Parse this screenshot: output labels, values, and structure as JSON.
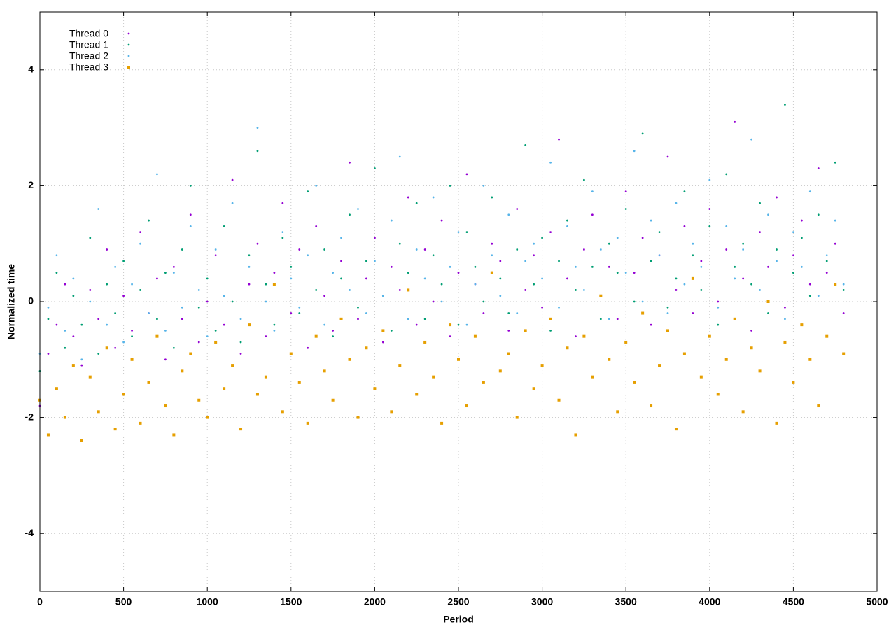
{
  "chart_data": {
    "type": "scatter",
    "xlabel": "Period",
    "ylabel": "Normalized time",
    "xlim": [
      0,
      5000
    ],
    "ylim": [
      -5,
      5
    ],
    "xticks": [
      0,
      500,
      1000,
      1500,
      2000,
      2500,
      3000,
      3500,
      4000,
      4500,
      5000
    ],
    "yticks": [
      -4,
      -2,
      0,
      2,
      4
    ],
    "grid": true,
    "legend": "top-left",
    "x": [
      0,
      50,
      100,
      150,
      200,
      250,
      300,
      350,
      400,
      450,
      500,
      550,
      600,
      650,
      700,
      750,
      800,
      850,
      900,
      950,
      1000,
      1050,
      1100,
      1150,
      1200,
      1250,
      1300,
      1350,
      1400,
      1450,
      1500,
      1550,
      1600,
      1650,
      1700,
      1750,
      1800,
      1850,
      1900,
      1950,
      2000,
      2050,
      2100,
      2150,
      2200,
      2250,
      2300,
      2350,
      2400,
      2450,
      2500,
      2550,
      2600,
      2650,
      2700,
      2750,
      2800,
      2850,
      2900,
      2950,
      3000,
      3050,
      3100,
      3150,
      3200,
      3250,
      3300,
      3350,
      3400,
      3450,
      3500,
      3550,
      3600,
      3650,
      3700,
      3750,
      3800,
      3850,
      3900,
      3950,
      4000,
      4050,
      4100,
      4150,
      4200,
      4250,
      4300,
      4350,
      4400,
      4450,
      4500,
      4550,
      4600,
      4650,
      4700,
      4750,
      4800
    ],
    "series": [
      {
        "name": "Thread 0",
        "color": "#9400d3",
        "marker": "dot",
        "values": [
          -1.8,
          -0.9,
          -0.4,
          0.3,
          -0.6,
          -1.1,
          0.2,
          -0.3,
          0.9,
          -0.8,
          0.1,
          -0.5,
          1.2,
          -0.2,
          0.4,
          -1.0,
          0.6,
          -0.3,
          1.5,
          -0.7,
          0.0,
          0.8,
          -0.4,
          2.1,
          -0.9,
          0.3,
          1.0,
          -0.6,
          0.5,
          1.7,
          -0.2,
          0.9,
          -0.8,
          1.3,
          0.1,
          -0.5,
          0.7,
          2.4,
          -0.3,
          0.4,
          1.1,
          -0.7,
          0.6,
          0.2,
          1.8,
          -0.4,
          0.9,
          0.0,
          1.4,
          -0.6,
          0.5,
          2.2,
          0.3,
          -0.2,
          1.0,
          0.7,
          -0.5,
          1.6,
          0.2,
          0.8,
          -0.1,
          1.2,
          2.8,
          0.4,
          -0.6,
          0.9,
          1.5,
          0.1,
          0.6,
          -0.3,
          1.9,
          0.5,
          1.1,
          -0.4,
          0.8,
          2.5,
          0.2,
          1.3,
          -0.2,
          0.7,
          1.6,
          0.0,
          0.9,
          3.1,
          0.4,
          -0.5,
          1.2,
          0.6,
          1.8,
          -0.1,
          0.8,
          1.4,
          0.3,
          2.3,
          0.5,
          1.0,
          -0.2
        ]
      },
      {
        "name": "Thread 1",
        "color": "#009e73",
        "marker": "dot",
        "values": [
          -1.2,
          -0.3,
          0.5,
          -0.8,
          0.1,
          -0.4,
          1.1,
          -0.9,
          0.3,
          -0.2,
          0.7,
          -0.6,
          0.2,
          1.4,
          -0.3,
          0.5,
          -0.8,
          0.9,
          2.0,
          -0.1,
          0.4,
          -0.5,
          1.3,
          0.0,
          -0.7,
          0.8,
          2.6,
          0.3,
          -0.4,
          1.1,
          0.6,
          -0.2,
          1.9,
          0.2,
          0.9,
          -0.6,
          0.4,
          1.5,
          -0.1,
          0.7,
          2.3,
          0.1,
          -0.5,
          1.0,
          0.5,
          1.7,
          -0.3,
          0.8,
          0.3,
          2.0,
          -0.4,
          1.2,
          0.6,
          0.0,
          1.8,
          0.4,
          -0.2,
          0.9,
          2.7,
          0.3,
          1.1,
          -0.5,
          0.7,
          1.4,
          0.2,
          2.1,
          0.6,
          -0.3,
          1.0,
          0.5,
          1.6,
          0.0,
          2.9,
          0.7,
          1.2,
          -0.1,
          0.4,
          1.9,
          0.8,
          0.2,
          1.3,
          -0.4,
          2.2,
          0.6,
          1.0,
          0.3,
          1.7,
          -0.2,
          0.9,
          3.4,
          0.5,
          1.1,
          0.1,
          1.5,
          0.7,
          2.4,
          0.2
        ]
      },
      {
        "name": "Thread 2",
        "color": "#56b4e9",
        "marker": "dot",
        "values": [
          -0.9,
          -0.1,
          0.8,
          -0.5,
          0.4,
          -1.0,
          0.0,
          1.6,
          -0.4,
          0.6,
          -0.7,
          0.3,
          1.0,
          -0.2,
          2.2,
          -0.5,
          0.5,
          -0.1,
          1.3,
          0.2,
          -0.6,
          0.9,
          0.1,
          1.7,
          -0.3,
          0.6,
          3.0,
          0.0,
          -0.5,
          1.2,
          0.4,
          -0.1,
          0.8,
          2.0,
          -0.4,
          0.5,
          1.1,
          0.2,
          1.6,
          -0.2,
          0.7,
          0.1,
          1.4,
          2.5,
          -0.3,
          0.9,
          0.4,
          1.8,
          0.0,
          0.6,
          1.2,
          -0.4,
          0.3,
          2.0,
          0.8,
          0.1,
          1.5,
          -0.2,
          0.7,
          1.0,
          0.4,
          2.4,
          -0.1,
          1.3,
          0.6,
          0.2,
          1.9,
          0.9,
          -0.3,
          1.1,
          0.5,
          2.6,
          0.0,
          1.4,
          0.8,
          -0.2,
          1.7,
          0.3,
          1.0,
          0.6,
          2.1,
          -0.1,
          1.3,
          0.4,
          0.9,
          2.8,
          0.2,
          1.5,
          0.7,
          -0.3,
          1.2,
          0.6,
          1.9,
          0.1,
          0.8,
          1.4,
          0.3
        ]
      },
      {
        "name": "Thread 3",
        "color": "#e69f00",
        "marker": "square",
        "values": [
          -1.7,
          -2.3,
          -1.5,
          -2.0,
          -1.1,
          -2.4,
          -1.3,
          -1.9,
          -0.8,
          -2.2,
          -1.6,
          -1.0,
          -2.1,
          -1.4,
          -0.6,
          -1.8,
          -2.3,
          -1.2,
          -0.9,
          -1.7,
          -2.0,
          -0.7,
          -1.5,
          -1.1,
          -2.2,
          -0.4,
          -1.6,
          -1.3,
          0.3,
          -1.9,
          -0.9,
          -1.4,
          -2.1,
          -0.6,
          -1.2,
          -1.7,
          -0.3,
          -1.0,
          -2.0,
          -0.8,
          -1.5,
          -0.5,
          -1.9,
          -1.1,
          0.2,
          -1.6,
          -0.7,
          -1.3,
          -2.1,
          -0.4,
          -1.0,
          -1.8,
          -0.6,
          -1.4,
          0.5,
          -1.2,
          -0.9,
          -2.0,
          -0.5,
          -1.5,
          -1.1,
          -0.3,
          -1.7,
          -0.8,
          -2.3,
          -0.6,
          -1.3,
          0.1,
          -1.0,
          -1.9,
          -0.7,
          -1.4,
          -0.2,
          -1.8,
          -1.1,
          -0.5,
          -2.2,
          -0.9,
          0.4,
          -1.3,
          -0.6,
          -1.6,
          -1.0,
          -0.3,
          -1.9,
          -0.8,
          -1.2,
          0.0,
          -2.1,
          -0.7,
          -1.4,
          -0.4,
          -1.0,
          -1.8,
          -0.6,
          0.3,
          -0.9
        ]
      }
    ]
  }
}
